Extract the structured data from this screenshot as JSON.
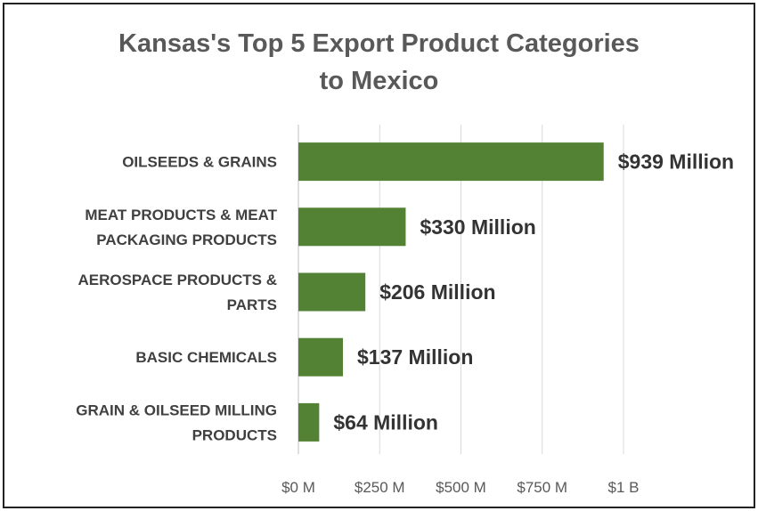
{
  "chart_data": {
    "type": "bar",
    "orientation": "horizontal",
    "title": "Kansas's Top 5 Export Product Categories to Mexico",
    "title_lines": [
      "Kansas's Top 5 Export Product Categories",
      "to Mexico"
    ],
    "categories": [
      "OILSEEDS & GRAINS",
      "MEAT PRODUCTS & MEAT PACKAGING PRODUCTS",
      "AEROSPACE PRODUCTS & PARTS",
      "BASIC CHEMICALS",
      "GRAIN & OILSEED MILLING PRODUCTS"
    ],
    "category_lines": [
      [
        "OILSEEDS & GRAINS"
      ],
      [
        "MEAT PRODUCTS & MEAT",
        "PACKAGING PRODUCTS"
      ],
      [
        "AEROSPACE PRODUCTS &",
        "PARTS"
      ],
      [
        "BASIC CHEMICALS"
      ],
      [
        "GRAIN & OILSEED MILLING",
        "PRODUCTS"
      ]
    ],
    "values": [
      939,
      330,
      206,
      137,
      64
    ],
    "value_unit": "million USD",
    "data_labels": [
      "$939 Million",
      "$330 Million",
      "$206 Million",
      "$137 Million",
      "$64 Million"
    ],
    "xlim": [
      0,
      1000
    ],
    "xticks": [
      0,
      250,
      500,
      750,
      1000
    ],
    "xtick_labels": [
      "$0 M",
      "$250 M",
      "$500 M",
      "$750 M",
      "$1 B"
    ],
    "xlabel": "",
    "ylabel": "",
    "grid": true,
    "legend": false,
    "bar_color": "#548235",
    "grid_color": "#d9d9d9"
  }
}
